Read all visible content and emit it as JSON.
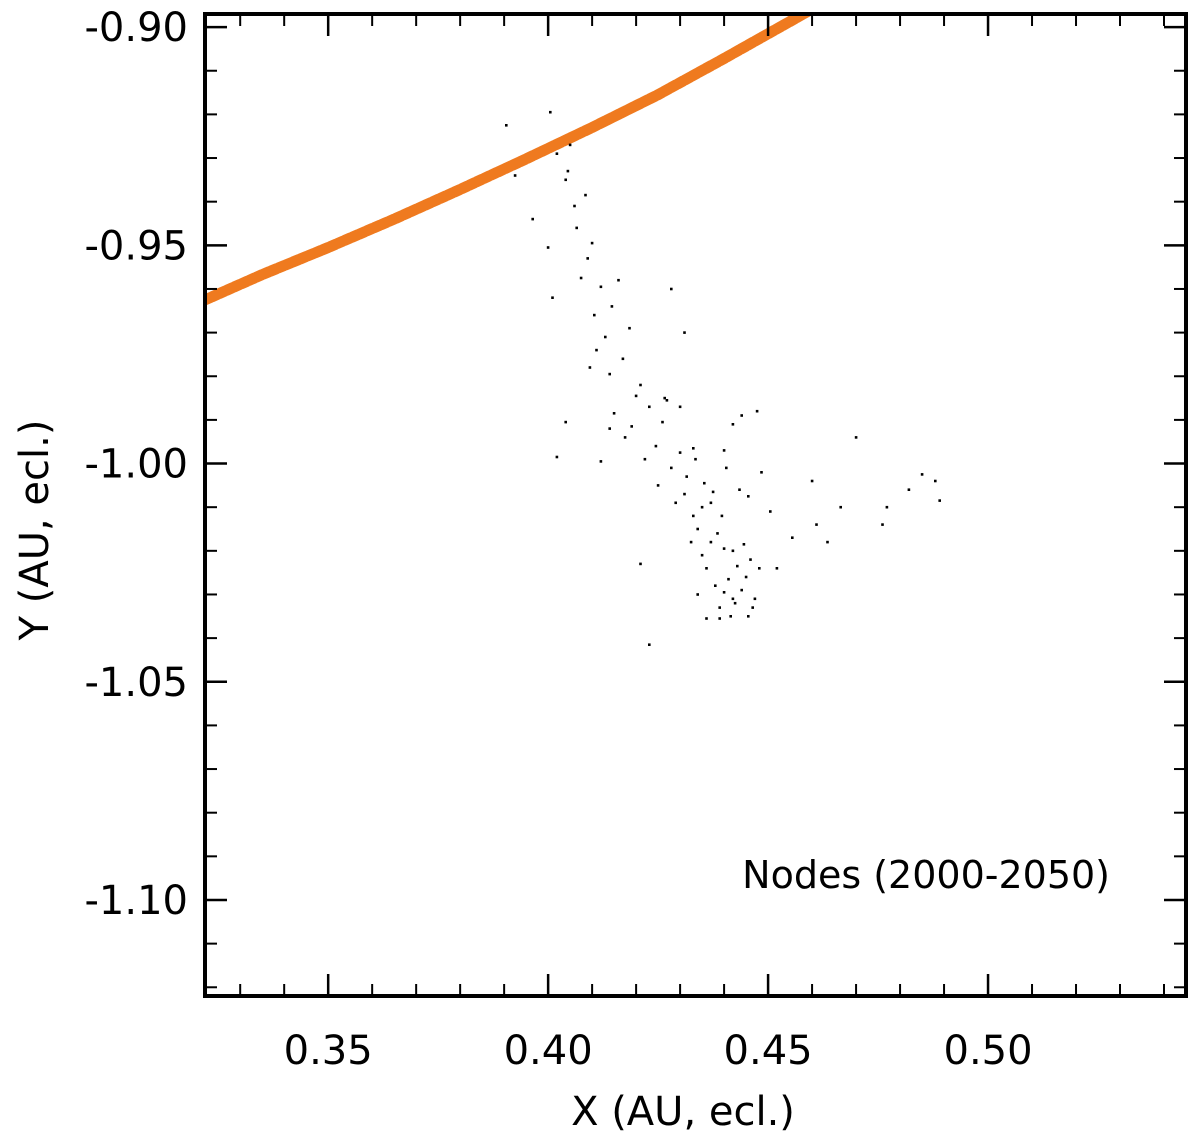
{
  "chart_data": {
    "type": "scatter",
    "title": "",
    "xlabel": "X (AU, ecl.)",
    "ylabel": "Y (AU, ecl.)",
    "xlim": [
      0.322,
      0.545
    ],
    "ylim": [
      -1.122,
      -0.897
    ],
    "grid": false,
    "x_ticks": [
      {
        "value": 0.35,
        "label": "0.35"
      },
      {
        "value": 0.4,
        "label": "0.40"
      },
      {
        "value": 0.45,
        "label": "0.45"
      },
      {
        "value": 0.5,
        "label": "0.50"
      }
    ],
    "y_ticks": [
      {
        "value": -0.9,
        "label": "-0.90"
      },
      {
        "value": -0.95,
        "label": "-0.95"
      },
      {
        "value": -1.0,
        "label": "-1.00"
      },
      {
        "value": -1.05,
        "label": "-1.05"
      },
      {
        "value": -1.1,
        "label": "-1.10"
      }
    ],
    "annotation": "Nodes (2000-2050)",
    "series": [
      {
        "kind": "curve",
        "color": "#ef7a1f",
        "x": [
          0.322,
          0.335,
          0.35,
          0.365,
          0.38,
          0.395,
          0.41,
          0.425,
          0.44,
          0.455,
          0.465,
          0.475
        ],
        "y": [
          -0.9625,
          -0.9567,
          -0.9505,
          -0.944,
          -0.9372,
          -0.9302,
          -0.923,
          -0.9155,
          -0.9072,
          -0.8987,
          -0.893,
          -0.887
        ]
      },
      {
        "kind": "points",
        "color": "#000000",
        "x": [
          0.3905,
          0.3925,
          0.4005,
          0.3965,
          0.4,
          0.401,
          0.404,
          0.402,
          0.406,
          0.405,
          0.4085,
          0.4045,
          0.4065,
          0.409,
          0.4075,
          0.41,
          0.412,
          0.4105,
          0.413,
          0.4145,
          0.416,
          0.411,
          0.414,
          0.417,
          0.4185,
          0.42,
          0.415,
          0.4175,
          0.421,
          0.419,
          0.423,
          0.4245,
          0.422,
          0.426,
          0.427,
          0.425,
          0.428,
          0.43,
          0.429,
          0.4315,
          0.433,
          0.431,
          0.434,
          0.4355,
          0.4325,
          0.435,
          0.437,
          0.4385,
          0.436,
          0.4395,
          0.438,
          0.44,
          0.441,
          0.442,
          0.439,
          0.443,
          0.4415,
          0.444,
          0.445,
          0.4425,
          0.446,
          0.4375,
          0.4405,
          0.4435,
          0.447,
          0.436,
          0.44,
          0.4445,
          0.448,
          0.434,
          0.439,
          0.4455,
          0.437,
          0.4465,
          0.442,
          0.435,
          0.452,
          0.4555,
          0.46,
          0.4635,
          0.461,
          0.4665,
          0.47,
          0.477,
          0.476,
          0.482,
          0.485,
          0.488,
          0.489,
          0.4485,
          0.4505,
          0.414,
          0.421,
          0.423,
          0.412,
          0.404,
          0.402,
          0.4095,
          0.428,
          0.431,
          0.442,
          0.4475,
          0.433,
          0.43,
          0.4265,
          0.44,
          0.4335,
          0.4455,
          0.444
        ],
        "y": [
          -0.9225,
          -0.934,
          -0.9195,
          -0.944,
          -0.9505,
          -0.962,
          -0.935,
          -0.929,
          -0.941,
          -0.927,
          -0.9385,
          -0.933,
          -0.946,
          -0.953,
          -0.9575,
          -0.9495,
          -0.9595,
          -0.966,
          -0.971,
          -0.964,
          -0.958,
          -0.974,
          -0.9795,
          -0.976,
          -0.969,
          -0.9845,
          -0.9885,
          -0.994,
          -0.982,
          -0.9915,
          -0.987,
          -0.996,
          -0.999,
          -0.9905,
          -0.9855,
          -1.005,
          -1.001,
          -0.9975,
          -1.009,
          -1.003,
          -1.012,
          -1.007,
          -1.015,
          -1.0045,
          -1.018,
          -1.021,
          -1.009,
          -1.016,
          -1.024,
          -1.012,
          -1.028,
          -1.0195,
          -1.0265,
          -1.031,
          -1.033,
          -1.0235,
          -1.035,
          -1.029,
          -1.026,
          -1.032,
          -1.022,
          -1.0065,
          -1.001,
          -1.006,
          -1.031,
          -1.0355,
          -1.0295,
          -1.0185,
          -1.024,
          -1.03,
          -1.0355,
          -1.035,
          -1.018,
          -1.033,
          -1.02,
          -1.01,
          -1.024,
          -1.017,
          -1.004,
          -1.018,
          -1.014,
          -1.01,
          -0.994,
          -1.01,
          -1.014,
          -1.006,
          -1.0025,
          -1.004,
          -1.0085,
          -1.002,
          -1.011,
          -0.992,
          -1.023,
          -1.0415,
          -0.9995,
          -0.9905,
          -0.9985,
          -0.978,
          -0.96,
          -0.97,
          -0.991,
          -0.988,
          -0.9965,
          -0.987,
          -0.985,
          -0.997,
          -0.999,
          -1.0075,
          -0.989
        ]
      }
    ]
  }
}
